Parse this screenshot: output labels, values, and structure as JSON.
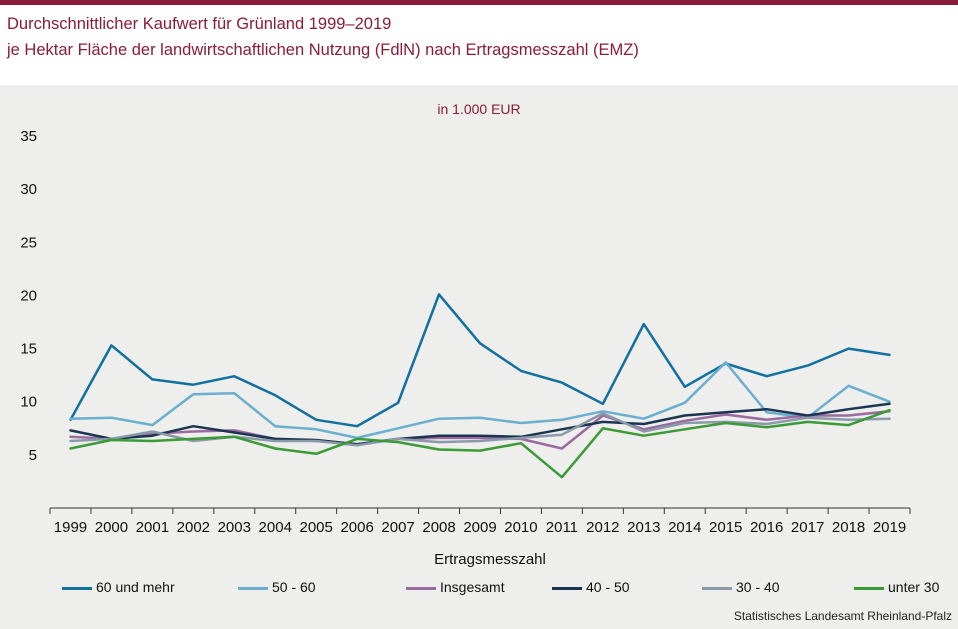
{
  "header": {
    "title_line1": "Durchschnittlicher Kaufwert für Grünland 1999–2019",
    "title_line2": "je Hektar Fläche der landwirtschaftlichen Nutzung (FdlN) nach Ertragsmesszahl (EMZ)"
  },
  "source": "Statistisches Landesamt Rheinland-Pfalz",
  "chart_data": {
    "type": "line",
    "title": "",
    "unit_label": "in 1.000 EUR",
    "xlabel": "Ertragsmesszahl",
    "ylabel": "",
    "ylim": [
      0,
      35
    ],
    "yticks": [
      5,
      10,
      15,
      20,
      25,
      30,
      35
    ],
    "grid": false,
    "legend_position": "bottom",
    "categories": [
      "1999",
      "2000",
      "2001",
      "2002",
      "2003",
      "2004",
      "2005",
      "2006",
      "2007",
      "2008",
      "2009",
      "2010",
      "2011",
      "2012",
      "2013",
      "2014",
      "2015",
      "2016",
      "2017",
      "2018",
      "2019"
    ],
    "series": [
      {
        "name": "60 und mehr",
        "color": "#1070a0",
        "values": [
          8.3,
          15.3,
          12.1,
          11.6,
          12.4,
          10.6,
          8.3,
          7.7,
          9.9,
          20.1,
          15.5,
          12.9,
          11.8,
          9.8,
          17.3,
          11.4,
          13.6,
          12.4,
          13.4,
          15.0,
          14.4
        ]
      },
      {
        "name": "50 - 60",
        "color": "#6aaed0",
        "values": [
          8.4,
          8.5,
          7.8,
          10.7,
          10.8,
          7.7,
          7.4,
          6.6,
          7.5,
          8.4,
          8.5,
          8.0,
          8.3,
          9.1,
          8.4,
          9.9,
          13.7,
          9.0,
          8.5,
          11.5,
          10.0
        ]
      },
      {
        "name": "Insgesamt",
        "color": "#9a6aa0",
        "values": [
          6.7,
          6.5,
          7.0,
          7.2,
          7.3,
          6.5,
          6.3,
          6.0,
          6.5,
          6.6,
          6.6,
          6.5,
          5.6,
          8.7,
          7.4,
          8.2,
          8.8,
          8.3,
          8.7,
          8.7,
          9.1
        ]
      },
      {
        "name": "40 - 50",
        "color": "#1a3550",
        "values": [
          7.3,
          6.5,
          6.8,
          7.7,
          7.1,
          6.5,
          6.4,
          6.0,
          6.5,
          6.8,
          6.8,
          6.7,
          7.4,
          8.1,
          7.9,
          8.7,
          9.0,
          9.3,
          8.7,
          9.3,
          9.8
        ]
      },
      {
        "name": "30 - 40",
        "color": "#8a9aaa",
        "values": [
          6.3,
          6.5,
          7.2,
          6.3,
          6.7,
          6.3,
          6.3,
          5.9,
          6.5,
          6.2,
          6.3,
          6.6,
          6.9,
          8.9,
          7.2,
          8.0,
          8.1,
          7.9,
          8.5,
          8.3,
          8.4
        ]
      },
      {
        "name": "unter 30",
        "color": "#3a9a35",
        "values": [
          5.6,
          6.4,
          6.3,
          6.5,
          6.7,
          5.6,
          5.1,
          6.5,
          6.2,
          5.5,
          5.4,
          6.1,
          2.9,
          7.5,
          6.8,
          7.4,
          8.0,
          7.6,
          8.1,
          7.8,
          9.2
        ]
      }
    ]
  }
}
